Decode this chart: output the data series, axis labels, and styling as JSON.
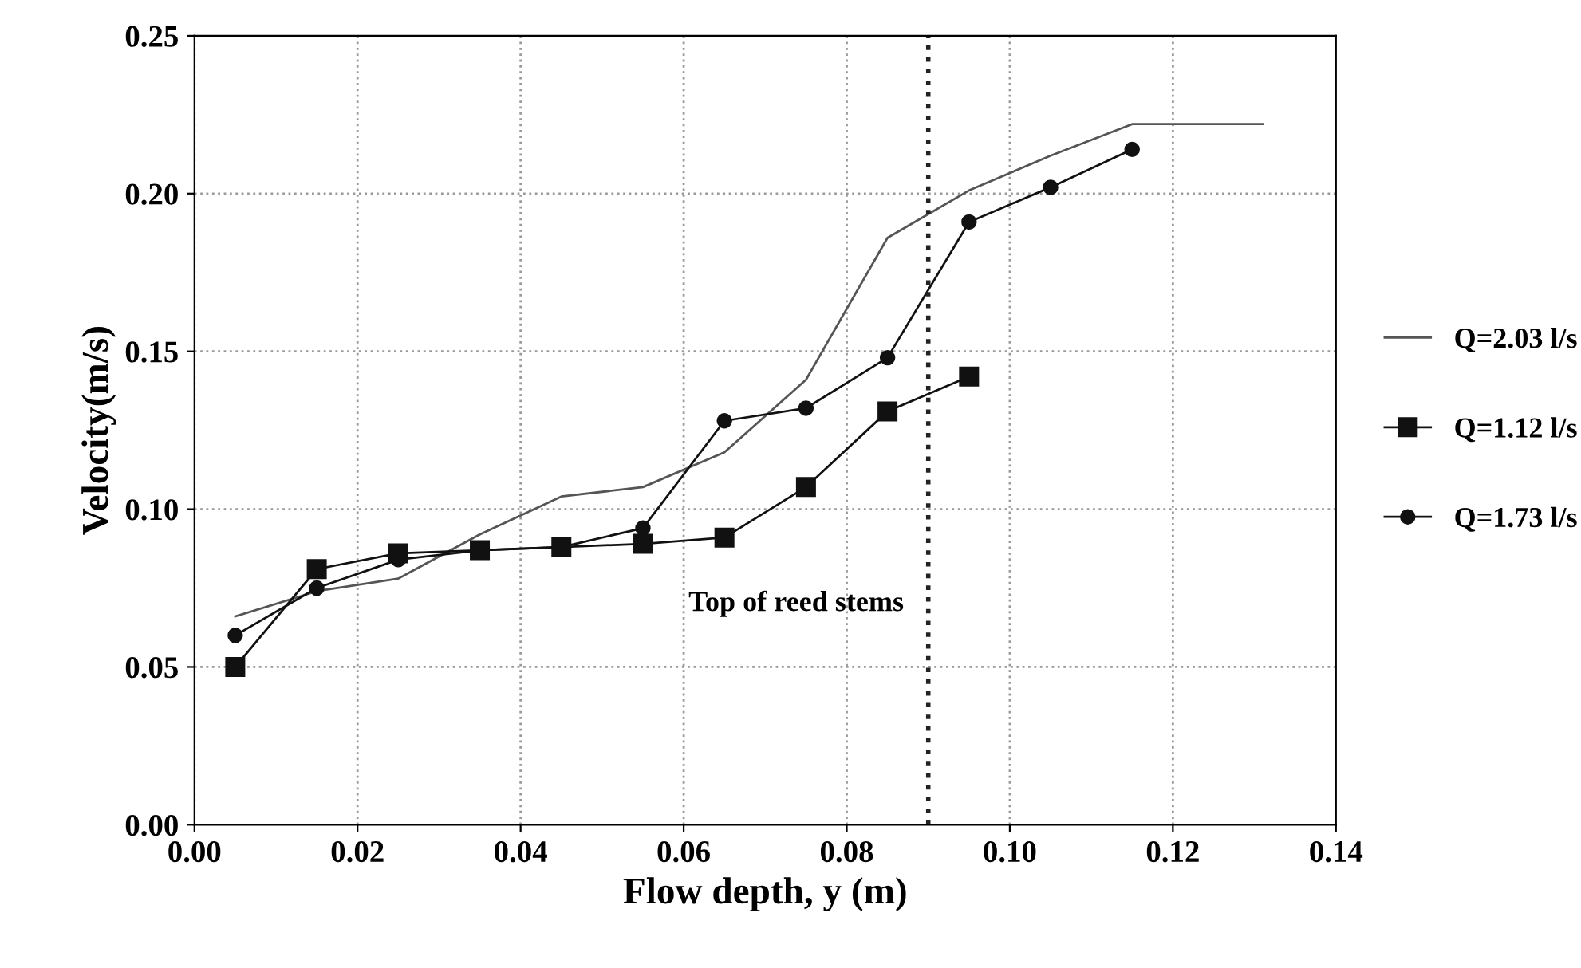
{
  "chart_data": {
    "type": "line",
    "xlabel": "Flow depth, y (m)",
    "ylabel": "Velocity(m/s)",
    "xlim": [
      0,
      0.14
    ],
    "ylim": [
      0,
      0.25
    ],
    "xticks": [
      {
        "value": 0,
        "label": "0.00"
      },
      {
        "value": 0.02,
        "label": "0.02"
      },
      {
        "value": 0.04,
        "label": "0.04"
      },
      {
        "value": 0.06,
        "label": "0.06"
      },
      {
        "value": 0.08,
        "label": "0.08"
      },
      {
        "value": 0.1,
        "label": "0.10"
      },
      {
        "value": 0.12,
        "label": "0.12"
      },
      {
        "value": 0.14,
        "label": "0.14"
      }
    ],
    "yticks": [
      {
        "value": 0,
        "label": "0.00"
      },
      {
        "value": 0.05,
        "label": "0.05"
      },
      {
        "value": 0.1,
        "label": "0.10"
      },
      {
        "value": 0.15,
        "label": "0.15"
      },
      {
        "value": 0.2,
        "label": "0.20"
      },
      {
        "value": 0.25,
        "label": "0.25"
      }
    ],
    "grid": true,
    "legend": "right",
    "series": [
      {
        "name": "Q=2.03 l/s",
        "color": "#555555",
        "marker": "none",
        "x": [
          0.005,
          0.015,
          0.025,
          0.035,
          0.045,
          0.055,
          0.065,
          0.075,
          0.085,
          0.095,
          0.105,
          0.115,
          0.131
        ],
        "values": [
          0.066,
          0.074,
          0.078,
          0.092,
          0.104,
          0.107,
          0.118,
          0.141,
          0.186,
          0.201,
          0.212,
          0.222,
          0.222
        ]
      },
      {
        "name": "Q=1.12 l/s",
        "color": "#111111",
        "marker": "square",
        "x": [
          0.005,
          0.015,
          0.025,
          0.035,
          0.045,
          0.055,
          0.065,
          0.075,
          0.085,
          0.095
        ],
        "values": [
          0.05,
          0.081,
          0.086,
          0.087,
          0.088,
          0.089,
          0.091,
          0.107,
          0.131,
          0.142
        ]
      },
      {
        "name": "Q=1.73 l/s",
        "color": "#111111",
        "marker": "circle",
        "x": [
          0.005,
          0.015,
          0.025,
          0.035,
          0.045,
          0.055,
          0.065,
          0.075,
          0.085,
          0.095,
          0.105,
          0.115
        ],
        "values": [
          0.06,
          0.075,
          0.084,
          0.087,
          0.088,
          0.094,
          0.128,
          0.132,
          0.148,
          0.191,
          0.202,
          0.214
        ]
      }
    ],
    "ref_lines": [
      {
        "axis": "x",
        "value": 0.09,
        "label": "Top of reed stems",
        "color": "#222222",
        "line_style": "dotted"
      }
    ]
  }
}
